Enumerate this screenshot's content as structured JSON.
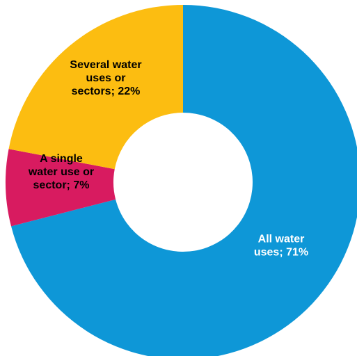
{
  "chart_data": {
    "type": "pie",
    "donut": true,
    "slices": [
      {
        "name": "All water uses",
        "value": 71,
        "color": "#0e97d7",
        "label_lines": [
          "All water",
          "uses; 71%"
        ],
        "label_color": "#ffffff"
      },
      {
        "name": "A single water use or sector",
        "value": 7,
        "color": "#d81b60",
        "label_lines": [
          "A single",
          "water use or",
          "sector; 7%"
        ],
        "label_color": "#000000"
      },
      {
        "name": "Several water uses or sectors",
        "value": 22,
        "color": "#fcbd11",
        "label_lines": [
          "Several water",
          "uses or",
          "sectors; 22%"
        ],
        "label_color": "#000000"
      }
    ],
    "start": "12 o'clock",
    "direction": "clockwise",
    "legend": "none"
  }
}
